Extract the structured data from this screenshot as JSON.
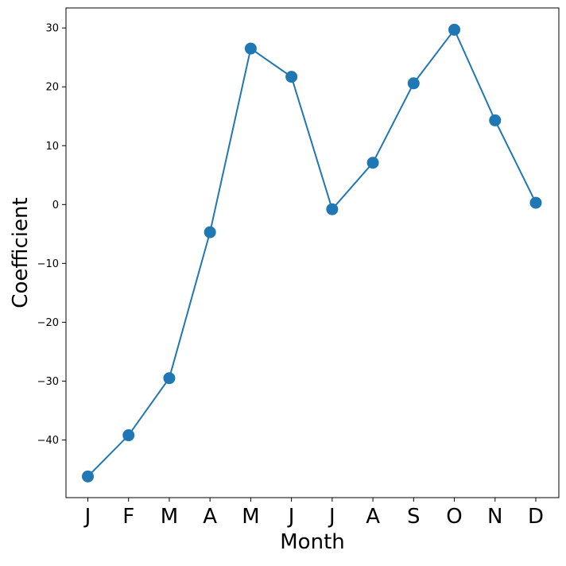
{
  "chart_data": {
    "type": "line",
    "title": "",
    "xlabel": "Month",
    "ylabel": "Coefficient",
    "categories": [
      "J",
      "F",
      "M",
      "A",
      "M",
      "J",
      "J",
      "A",
      "S",
      "O",
      "N",
      "D"
    ],
    "series": [
      {
        "values": [
          -46.2,
          -39.2,
          -29.5,
          -4.7,
          26.5,
          21.7,
          -0.8,
          7.1,
          20.6,
          29.7,
          14.3,
          0.3
        ],
        "color": "#1f77b4",
        "marker": "circle"
      }
    ],
    "ylim": [
      -49.8,
      33.4
    ],
    "yticks": [
      -40,
      -30,
      -20,
      -10,
      0,
      10,
      20,
      30
    ],
    "grid": false,
    "legend": "none"
  }
}
